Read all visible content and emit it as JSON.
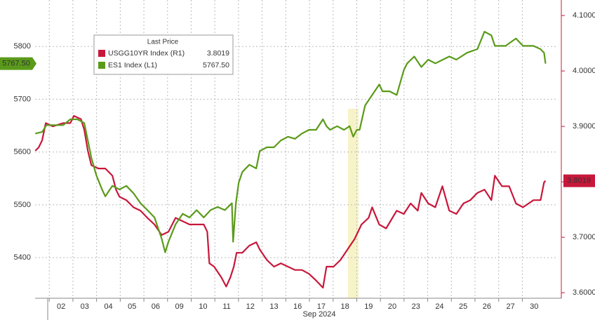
{
  "chart_data": {
    "type": "line",
    "x_label": "Sep 2024",
    "legend_title": "Last Price",
    "xlim": [
      -0.6,
      21.5
    ],
    "xticks": [
      {
        "value": 0,
        "label": "02"
      },
      {
        "value": 1,
        "label": "03"
      },
      {
        "value": 2,
        "label": "04"
      },
      {
        "value": 3,
        "label": "05"
      },
      {
        "value": 4,
        "label": "06"
      },
      {
        "value": 5,
        "label": "09"
      },
      {
        "value": 6,
        "label": "10"
      },
      {
        "value": 7,
        "label": "11"
      },
      {
        "value": 8,
        "label": "12"
      },
      {
        "value": 9,
        "label": "13"
      },
      {
        "value": 10,
        "label": "16"
      },
      {
        "value": 11,
        "label": "17"
      },
      {
        "value": 12,
        "label": "18"
      },
      {
        "value": 13,
        "label": "19"
      },
      {
        "value": 14,
        "label": "20"
      },
      {
        "value": 15,
        "label": "23"
      },
      {
        "value": 16,
        "label": "24"
      },
      {
        "value": 17,
        "label": "25"
      },
      {
        "value": 18,
        "label": "26"
      },
      {
        "value": 19,
        "label": "27"
      },
      {
        "value": 20,
        "label": "30"
      }
    ],
    "ylim": [
      5323,
      5888
    ],
    "yticks": [
      5400,
      5500,
      5600,
      5700,
      5800
    ],
    "y2lim": [
      3.59,
      4.128
    ],
    "y2ticks": [
      {
        "value": 3.6,
        "label": "3.6000"
      },
      {
        "value": 3.7,
        "label": "3.7000"
      },
      {
        "value": 3.8,
        "label": "3.8000"
      },
      {
        "value": 3.9,
        "label": "3.9000"
      },
      {
        "value": 4.0,
        "label": "4.0000"
      },
      {
        "value": 4.1,
        "label": "4.1000"
      }
    ],
    "grid": true,
    "series": [
      {
        "name": "USGG10YR Index (R1)",
        "color": "#c8173a",
        "axis": "y2",
        "x": [
          -0.59,
          -0.45,
          -0.3,
          -0.15,
          0.15,
          0.59,
          0.89,
          1.04,
          1.34,
          1.48,
          1.63,
          1.78,
          2.08,
          2.37,
          2.67,
          2.82,
          2.97,
          3.26,
          3.56,
          3.86,
          4.15,
          4.45,
          4.75,
          5.04,
          5.34,
          5.64,
          5.93,
          6.23,
          6.53,
          6.68,
          6.77,
          6.97,
          7.27,
          7.48,
          7.66,
          7.8,
          7.92,
          8.16,
          8.46,
          8.75,
          8.9,
          9.2,
          9.5,
          9.79,
          10.09,
          10.39,
          10.68,
          10.98,
          11.28,
          11.57,
          11.72,
          12.02,
          12.31,
          12.61,
          12.91,
          13.2,
          13.5,
          13.65,
          13.95,
          14.24,
          14.69,
          14.99,
          15.28,
          15.58,
          15.73,
          16.02,
          16.32,
          16.62,
          16.91,
          17.21,
          17.51,
          17.8,
          18.1,
          18.4,
          18.69,
          18.84,
          19.14,
          19.44,
          19.73,
          20.03,
          20.47,
          20.77,
          20.92,
          20.98
        ],
        "values": [
          3.856,
          3.862,
          3.875,
          3.906,
          3.9,
          3.906,
          3.906,
          3.919,
          3.913,
          3.894,
          3.856,
          3.83,
          3.824,
          3.824,
          3.811,
          3.786,
          3.773,
          3.767,
          3.754,
          3.748,
          3.735,
          3.723,
          3.704,
          3.71,
          3.735,
          3.729,
          3.723,
          3.723,
          3.723,
          3.71,
          3.653,
          3.647,
          3.628,
          3.611,
          3.628,
          3.647,
          3.672,
          3.672,
          3.685,
          3.691,
          3.678,
          3.659,
          3.647,
          3.653,
          3.647,
          3.641,
          3.641,
          3.634,
          3.622,
          3.609,
          3.647,
          3.647,
          3.659,
          3.678,
          3.697,
          3.723,
          3.735,
          3.754,
          3.723,
          3.716,
          3.748,
          3.742,
          3.761,
          3.748,
          3.78,
          3.761,
          3.754,
          3.792,
          3.748,
          3.742,
          3.761,
          3.767,
          3.78,
          3.786,
          3.767,
          3.811,
          3.792,
          3.792,
          3.761,
          3.754,
          3.767,
          3.767,
          3.799,
          3.8019
        ]
      },
      {
        "name": "ES1 Index (L1)",
        "color": "#5a9a1a",
        "axis": "y",
        "x": [
          -0.59,
          -0.3,
          -0.12,
          0.15,
          0.59,
          0.89,
          1.19,
          1.48,
          1.63,
          1.78,
          1.99,
          2.23,
          2.37,
          2.67,
          2.97,
          3.26,
          3.56,
          3.86,
          4.15,
          4.45,
          4.75,
          4.9,
          5.04,
          5.34,
          5.64,
          5.93,
          6.23,
          6.53,
          6.82,
          7.12,
          7.42,
          7.72,
          7.77,
          7.89,
          8.01,
          8.16,
          8.46,
          8.75,
          8.9,
          9.2,
          9.5,
          9.79,
          10.09,
          10.39,
          10.68,
          10.98,
          11.28,
          11.57,
          11.72,
          11.87,
          12.17,
          12.46,
          12.7,
          12.85,
          13.0,
          13.12,
          13.35,
          13.65,
          13.95,
          14.09,
          14.39,
          14.69,
          14.99,
          15.13,
          15.43,
          15.73,
          16.02,
          16.32,
          16.91,
          17.21,
          17.66,
          18.1,
          18.4,
          18.69,
          18.84,
          19.29,
          19.73,
          20.03,
          20.47,
          20.77,
          20.92,
          20.98
        ],
        "values": [
          5635,
          5638,
          5651,
          5651,
          5651,
          5662,
          5662,
          5655,
          5622,
          5589,
          5556,
          5529,
          5516,
          5536,
          5529,
          5536,
          5522,
          5503,
          5490,
          5476,
          5436,
          5410,
          5430,
          5463,
          5483,
          5476,
          5490,
          5476,
          5490,
          5496,
          5490,
          5503,
          5430,
          5503,
          5542,
          5562,
          5576,
          5569,
          5602,
          5609,
          5609,
          5622,
          5629,
          5625,
          5635,
          5642,
          5642,
          5662,
          5649,
          5642,
          5649,
          5642,
          5649,
          5629,
          5642,
          5642,
          5688,
          5708,
          5728,
          5715,
          5715,
          5708,
          5755,
          5768,
          5781,
          5761,
          5775,
          5768,
          5781,
          5775,
          5788,
          5795,
          5828,
          5821,
          5801,
          5801,
          5815,
          5801,
          5801,
          5795,
          5788,
          5767.5
        ],
        "last_value_label": "5767.50"
      }
    ]
  }
}
